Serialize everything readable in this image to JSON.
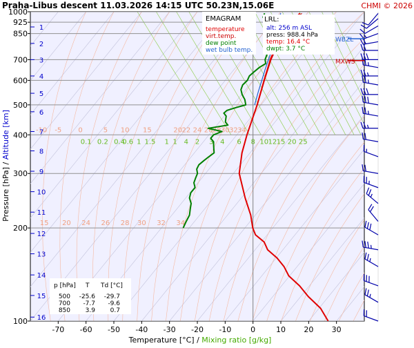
{
  "header": {
    "title": "Praha-Libus   descent   11.03.2026 14:15 UTC  50.23N,15.06E",
    "copyright": "CHMI © 2026"
  },
  "legend": {
    "title": "EMAGRAM",
    "items": [
      {
        "label": "temperature",
        "color": "#e00000"
      },
      {
        "label": "virt.temp.",
        "color": "#cc0000"
      },
      {
        "label": "dew point",
        "color": "#008000"
      },
      {
        "label": "wet bulb temp.",
        "color": "#2060d0"
      }
    ]
  },
  "lrl": {
    "title": "LRL:",
    "lines": [
      {
        "text": "alt: 256 m ASL",
        "color": "#0000cc"
      },
      {
        "text": "press: 988.4 hPa",
        "color": "#000000"
      },
      {
        "text": "temp: 16.4 °C",
        "color": "#e00000"
      },
      {
        "text": "dwpt: 3.7 °C",
        "color": "#008000"
      }
    ]
  },
  "table": {
    "headers": [
      "p [hPa]",
      "T",
      "Td [°C]"
    ],
    "rows": [
      [
        "500",
        "-25.6",
        "-29.7"
      ],
      [
        "700",
        "-7.7",
        "-9.6"
      ],
      [
        "850",
        "3.9",
        "0.7"
      ]
    ]
  },
  "markers": [
    {
      "label": "MXWS",
      "color": "#cc0000",
      "pressure": 695
    },
    {
      "label": "WBZL",
      "color": "#2060d0",
      "pressure": 818
    }
  ],
  "axes": {
    "ylabel_pressure": "Pressure [hPa]",
    "ylabel_sep": "  /  ",
    "ylabel_altitude": "Altitude [km]",
    "xlabel_temp": "Temperature [°C]",
    "xlabel_sep": "  /  ",
    "xlabel_mix": "Mixing ratio [g/kg]"
  },
  "chart_data": {
    "type": "line",
    "x_scale": "linear",
    "y_scale": "log",
    "xlim": [
      -80,
      40
    ],
    "ylim": [
      1000,
      100
    ],
    "skew_c_per_log10p": 90,
    "x_ticks": [
      -70,
      -60,
      -50,
      -40,
      -30,
      -20,
      -10,
      0,
      10,
      20,
      30
    ],
    "x_tick_labels": [
      "-70",
      "-60",
      "-50",
      "-40",
      "-30",
      "-20",
      "-10",
      "0",
      "10",
      "20",
      "30"
    ],
    "y_ticks": [
      100,
      200,
      300,
      400,
      500,
      600,
      700,
      850,
      925,
      1000
    ],
    "y_tick_labels": [
      "100",
      "200",
      "300",
      "400",
      "500",
      "600",
      "700",
      "850",
      "925",
      "1000"
    ],
    "altitude_labels": [
      {
        "km": "1",
        "p": 893
      },
      {
        "km": "2",
        "p": 790
      },
      {
        "km": "3",
        "p": 700
      },
      {
        "km": "4",
        "p": 620
      },
      {
        "km": "5",
        "p": 545
      },
      {
        "km": "6",
        "p": 475
      },
      {
        "km": "7",
        "p": 410
      },
      {
        "km": "8",
        "p": 355
      },
      {
        "km": "9",
        "p": 305
      },
      {
        "km": "10",
        "p": 262
      },
      {
        "km": "11",
        "p": 225
      },
      {
        "km": "12",
        "p": 192
      },
      {
        "km": "13",
        "p": 165
      },
      {
        "km": "14",
        "p": 141
      },
      {
        "km": "15",
        "p": 121
      },
      {
        "km": "16",
        "p": 103
      }
    ],
    "temperature": {
      "p": [
        988,
        925,
        850,
        800,
        700,
        600,
        500,
        400,
        350,
        300,
        250,
        220,
        200,
        190,
        180,
        170,
        160,
        150,
        140,
        130,
        120,
        110,
        100
      ],
      "t": [
        16.4,
        10.5,
        3.9,
        0.2,
        -7.7,
        -16,
        -25.6,
        -38,
        -45,
        -52,
        -57,
        -60,
        -63,
        -64,
        -63,
        -64,
        -63,
        -63,
        -64,
        -63,
        -63,
        -62,
        -63
      ]
    },
    "virtual_temperature": {
      "p": [
        988,
        925,
        850,
        800,
        700,
        600,
        500,
        400,
        350,
        300,
        250,
        220,
        200,
        190,
        180,
        170,
        160,
        150,
        140,
        130,
        120,
        110,
        100
      ],
      "t": [
        17.1,
        11.1,
        4.5,
        0.7,
        -7.4,
        -15.8,
        -25.5,
        -38,
        -45,
        -52,
        -57,
        -60,
        -63,
        -64,
        -63,
        -64,
        -63,
        -63,
        -64,
        -63,
        -63,
        -62,
        -63
      ]
    },
    "dewpoint": {
      "p": [
        988,
        960,
        925,
        900,
        850,
        820,
        800,
        780,
        760,
        740,
        720,
        700,
        680,
        660,
        640,
        620,
        600,
        580,
        560,
        540,
        520,
        500,
        490,
        480,
        470,
        460,
        450,
        440,
        430,
        420,
        410,
        400,
        390,
        380,
        370,
        360,
        350,
        340,
        330,
        320,
        310,
        300,
        290,
        280,
        270,
        260,
        250,
        240,
        230,
        220,
        210,
        200
      ],
      "t": [
        3.7,
        2.0,
        1.6,
        1.3,
        0.7,
        -1.5,
        -3.0,
        -4.0,
        -5.0,
        -6.5,
        -8.0,
        -9.6,
        -10.5,
        -14,
        -17,
        -20,
        -22,
        -25,
        -27,
        -28,
        -28.5,
        -29.7,
        -34,
        -38,
        -40,
        -40,
        -41,
        -42,
        -42,
        -50,
        -46,
        -50,
        -52,
        -52,
        -53,
        -54,
        -55,
        -58,
        -61,
        -64,
        -66,
        -67,
        -69,
        -71,
        -72,
        -75,
        -77,
        -78,
        -80,
        -82,
        -85,
        -88
      ]
    },
    "wet_bulb": {
      "p": [
        988,
        925,
        850,
        800,
        750,
        700,
        650,
        600,
        550,
        500
      ],
      "t": [
        9.5,
        5.5,
        1.8,
        -1.5,
        -4.5,
        -8.4,
        -12.5,
        -16.8,
        -21.5,
        -26.5
      ]
    },
    "isobar_labels_200": [
      {
        "label": "15",
        "t": -75
      },
      {
        "label": "20",
        "t": -67
      },
      {
        "label": "24",
        "t": -60
      },
      {
        "label": "26",
        "t": -53
      },
      {
        "label": "28",
        "t": -46
      },
      {
        "label": "30",
        "t": -40
      },
      {
        "label": "32",
        "t": -33
      },
      {
        "label": "34",
        "t": -26
      }
    ],
    "isobar_labels_400": [
      {
        "label": "-10",
        "t": -76
      },
      {
        "label": "-5",
        "t": -70
      },
      {
        "label": "0",
        "t": -62
      },
      {
        "label": "5",
        "t": -53
      },
      {
        "label": "10",
        "t": -46
      },
      {
        "label": "15",
        "t": -38
      },
      {
        "label": "20",
        "t": -27
      },
      {
        "label": "22",
        "t": -24
      },
      {
        "label": "24",
        "t": -20
      },
      {
        "label": "26",
        "t": -16
      },
      {
        "label": "28",
        "t": -13
      },
      {
        "label": "30",
        "t": -10
      },
      {
        "label": "32",
        "t": -7
      },
      {
        "label": "34",
        "t": -4
      }
    ],
    "mixing_ratio_labels": [
      {
        "label": "0.1",
        "t": -60
      },
      {
        "label": "0.2",
        "t": -54
      },
      {
        "label": "0.4",
        "t": -48
      },
      {
        "label": "0.6",
        "t": -45
      },
      {
        "label": "1",
        "t": -41
      },
      {
        "label": "1.5",
        "t": -37
      },
      {
        "label": "1",
        "t": -31
      },
      {
        "label": "1",
        "t": -28
      },
      {
        "label": "4",
        "t": -24
      },
      {
        "label": "2",
        "t": -20
      },
      {
        "label": "3",
        "t": -15
      },
      {
        "label": "4",
        "t": -11
      },
      {
        "label": "6",
        "t": -5
      },
      {
        "label": "8",
        "t": 0
      },
      {
        "label": "10",
        "t": 4
      },
      {
        "label": "12",
        "t": 7
      },
      {
        "label": "15",
        "t": 10
      },
      {
        "label": "20",
        "t": 14
      },
      {
        "label": "25",
        "t": 18
      }
    ],
    "wind_barbs": [
      {
        "p": 100,
        "dir": 290,
        "kt": 20
      },
      {
        "p": 115,
        "dir": 300,
        "kt": 25
      },
      {
        "p": 130,
        "dir": 290,
        "kt": 30
      },
      {
        "p": 150,
        "dir": 300,
        "kt": 25
      },
      {
        "p": 170,
        "dir": 280,
        "kt": 35
      },
      {
        "p": 190,
        "dir": 300,
        "kt": 30
      },
      {
        "p": 210,
        "dir": 320,
        "kt": 20
      },
      {
        "p": 240,
        "dir": 310,
        "kt": 25
      },
      {
        "p": 270,
        "dir": 290,
        "kt": 25
      },
      {
        "p": 300,
        "dir": 280,
        "kt": 20
      },
      {
        "p": 340,
        "dir": 290,
        "kt": 15
      },
      {
        "p": 380,
        "dir": 280,
        "kt": 20
      },
      {
        "p": 420,
        "dir": 270,
        "kt": 25
      },
      {
        "p": 460,
        "dir": 280,
        "kt": 25
      },
      {
        "p": 500,
        "dir": 280,
        "kt": 30
      },
      {
        "p": 540,
        "dir": 270,
        "kt": 30
      },
      {
        "p": 580,
        "dir": 280,
        "kt": 25
      },
      {
        "p": 620,
        "dir": 270,
        "kt": 25
      },
      {
        "p": 660,
        "dir": 280,
        "kt": 25
      },
      {
        "p": 700,
        "dir": 270,
        "kt": 30
      },
      {
        "p": 750,
        "dir": 270,
        "kt": 20
      },
      {
        "p": 800,
        "dir": 260,
        "kt": 20
      },
      {
        "p": 850,
        "dir": 250,
        "kt": 15
      },
      {
        "p": 900,
        "dir": 240,
        "kt": 10
      },
      {
        "p": 950,
        "dir": 230,
        "kt": 10
      },
      {
        "p": 988,
        "dir": 220,
        "kt": 10
      }
    ]
  }
}
